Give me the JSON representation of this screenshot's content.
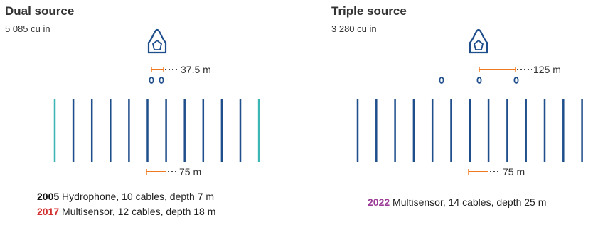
{
  "colors": {
    "cable": "#1f4e8c",
    "cable_highlight": "#3bb6b5",
    "measure": "#f07a23",
    "dots": "#444444",
    "year_2005": "#111111",
    "year_2017": "#d32f2f",
    "year_2022": "#9b3d97",
    "vessel": "#1f4e8c"
  },
  "panels": [
    {
      "id": "dual",
      "title": "Dual source",
      "volume": "5 085 cu in",
      "vessel_icon": "ship-icon",
      "source_separation_label": "37.5 m",
      "cable_separation_label": "75 m",
      "source_count": 2,
      "cable_count": 12,
      "highlight_cables": [
        0,
        11
      ],
      "captions": [
        {
          "year": "2005",
          "text": " Hydrophone, 10 cables, depth 7 m",
          "color_key": "year_2005"
        },
        {
          "year": "2017",
          "text": " Multisensor, 12 cables, depth 18 m",
          "color_key": "year_2017"
        }
      ]
    },
    {
      "id": "triple",
      "title": "Triple source",
      "volume": "3 280 cu in",
      "vessel_icon": "ship-icon",
      "source_separation_label": "125 m",
      "cable_separation_label": "75 m",
      "source_count": 3,
      "cable_count": 14,
      "highlight_cables": [],
      "captions": [
        {
          "year": "2022",
          "text": " Multisensor, 14 cables, depth 25 m",
          "color_key": "year_2022"
        }
      ]
    }
  ]
}
